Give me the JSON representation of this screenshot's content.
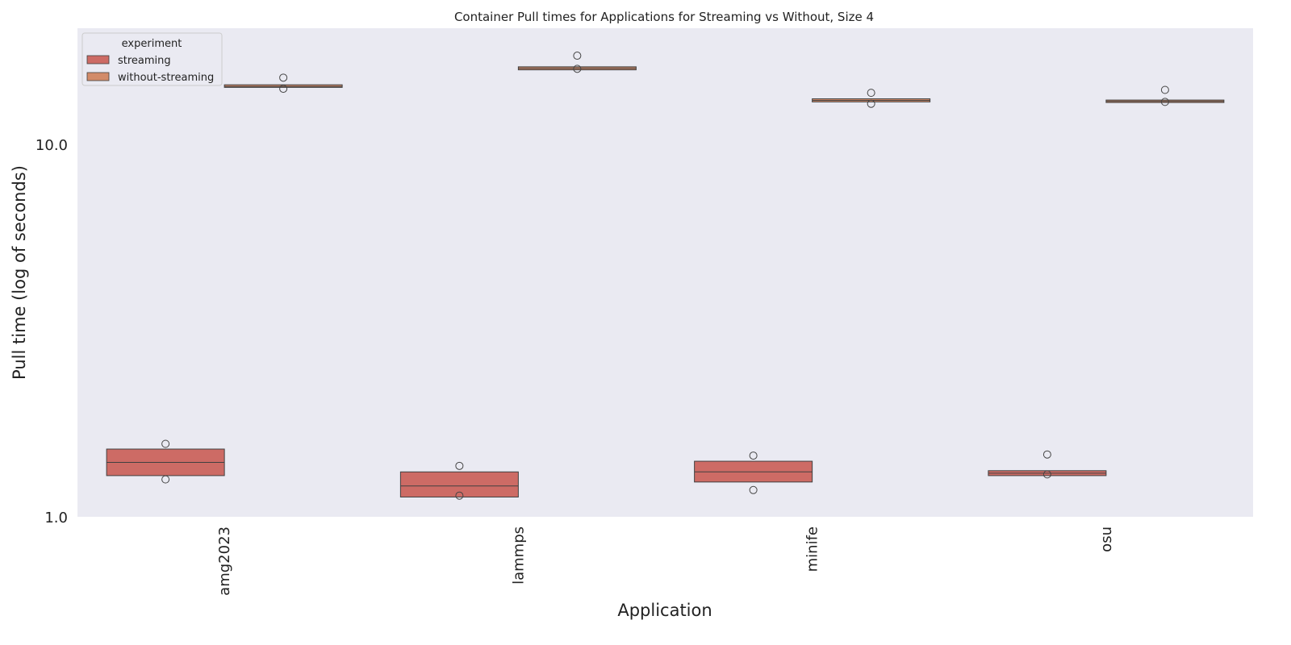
{
  "chart_data": {
    "type": "box",
    "title": "Container Pull times for Applications for Streaming vs Without, Size 4",
    "xlabel": "Application",
    "ylabel": "Pull time (log of seconds)",
    "y_scale": "log",
    "ylim": [
      1.0,
      20.5
    ],
    "y_ticks": [
      1.0,
      10.0
    ],
    "y_tick_labels": [
      "1.0",
      "10.0"
    ],
    "grid": false,
    "categories": [
      "amg2023",
      "lammps",
      "minife",
      "osu"
    ],
    "legend": {
      "title": "experiment",
      "position": "top-left",
      "entries": [
        "streaming",
        "without-streaming"
      ]
    },
    "series": [
      {
        "name": "streaming",
        "color": "#cd6b65",
        "boxes": [
          {
            "category": "amg2023",
            "q1": 1.29,
            "median": 1.4,
            "q3": 1.52,
            "outliers": [
              1.26,
              1.57
            ]
          },
          {
            "category": "lammps",
            "q1": 1.13,
            "median": 1.21,
            "q3": 1.32,
            "outliers": [
              1.14,
              1.37
            ]
          },
          {
            "category": "minife",
            "q1": 1.24,
            "median": 1.32,
            "q3": 1.41,
            "outliers": [
              1.18,
              1.46
            ]
          },
          {
            "category": "osu",
            "q1": 1.29,
            "median": 1.31,
            "q3": 1.33,
            "outliers": [
              1.3,
              1.47
            ]
          }
        ]
      },
      {
        "name": "without-streaming",
        "color": "#d28b69",
        "boxes": [
          {
            "category": "amg2023",
            "q1": 14.22,
            "median": 14.3,
            "q3": 14.45,
            "outliers": [
              14.1,
              15.1
            ]
          },
          {
            "category": "lammps",
            "q1": 15.85,
            "median": 16.0,
            "q3": 16.15,
            "outliers": [
              15.95,
              17.3
            ]
          },
          {
            "category": "minife",
            "q1": 13.0,
            "median": 13.12,
            "q3": 13.25,
            "outliers": [
              12.85,
              13.75
            ]
          },
          {
            "category": "osu",
            "q1": 12.95,
            "median": 13.05,
            "q3": 13.15,
            "outliers": [
              13.0,
              14.0
            ]
          }
        ]
      }
    ]
  }
}
